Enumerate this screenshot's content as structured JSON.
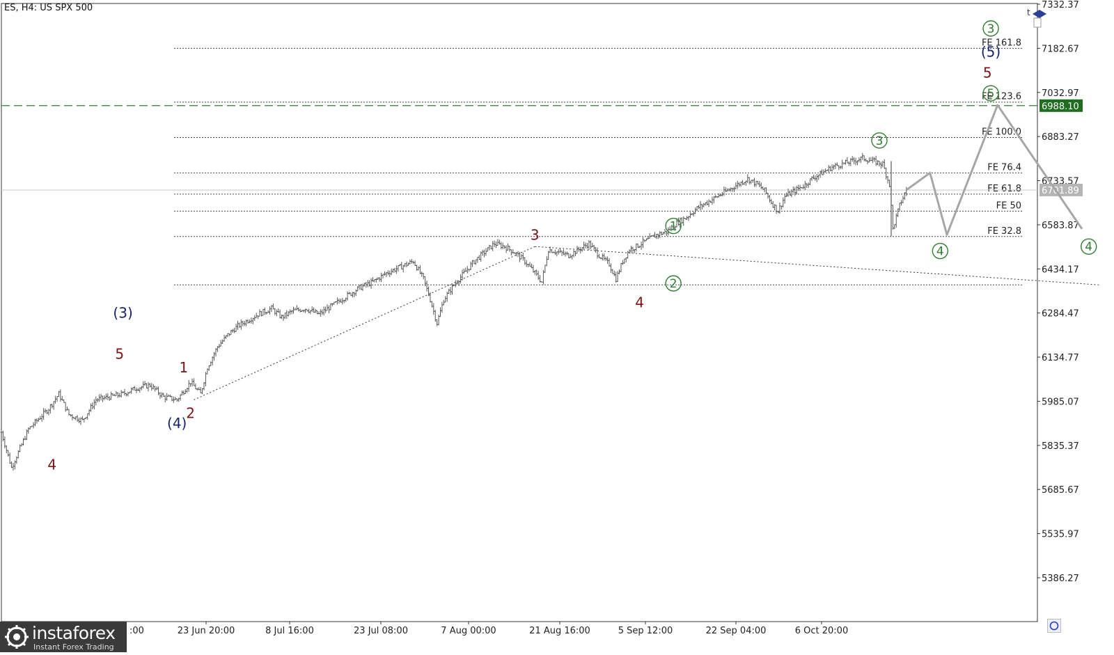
{
  "title": "ES, H4:  US SPX 500",
  "colors": {
    "background": "#ffffff",
    "candles": "#555555",
    "fib_lines": "#444444",
    "projection": "#a6a6a6",
    "wave_red": "#7a1414",
    "wave_blue": "#17236e",
    "wave_green": "#2f7d2f",
    "target_line": "#2f7d2f",
    "target_badge": "#1f6e1f",
    "current_badge": "#b5b5b5"
  },
  "watermark": {
    "brand": "instaforex",
    "tagline": "Instant Forex Trading"
  },
  "chart_data": {
    "type": "candlestick",
    "y_ticks": [
      7332.37,
      7182.67,
      7032.97,
      6883.27,
      6733.57,
      6583.87,
      6434.17,
      6284.47,
      6134.77,
      5985.07,
      5835.37,
      5685.67,
      5535.97,
      5386.27
    ],
    "x_ticks": [
      "23 Jun 20:00",
      "8 Jul 16:00",
      "23 Jul 08:00",
      "7 Aug 00:00",
      "21 Aug 16:00",
      "5 Sep 12:00",
      "22 Sep 04:00",
      "6 Oct 20:00"
    ],
    "x_ticks_partial_left": ":00",
    "ylim": [
      5250,
      7340
    ],
    "price_path": [
      [
        0,
        5880
      ],
      [
        3,
        5760
      ],
      [
        8,
        5890
      ],
      [
        14,
        5960
      ],
      [
        17,
        6010
      ],
      [
        20,
        5940
      ],
      [
        24,
        5920
      ],
      [
        28,
        5990
      ],
      [
        32,
        6000
      ],
      [
        36,
        6010
      ],
      [
        40,
        6030
      ],
      [
        44,
        6040
      ],
      [
        48,
        6000
      ],
      [
        52,
        5990
      ],
      [
        56,
        6050
      ],
      [
        59,
        6010
      ],
      [
        61,
        6100
      ],
      [
        64,
        6170
      ],
      [
        67,
        6210
      ],
      [
        70,
        6240
      ],
      [
        73,
        6260
      ],
      [
        76,
        6280
      ],
      [
        80,
        6300
      ],
      [
        83,
        6270
      ],
      [
        86,
        6290
      ],
      [
        90,
        6300
      ],
      [
        94,
        6280
      ],
      [
        98,
        6310
      ],
      [
        102,
        6340
      ],
      [
        106,
        6370
      ],
      [
        110,
        6390
      ],
      [
        114,
        6420
      ],
      [
        118,
        6440
      ],
      [
        122,
        6460
      ],
      [
        125,
        6400
      ],
      [
        127,
        6330
      ],
      [
        129,
        6250
      ],
      [
        131,
        6330
      ],
      [
        134,
        6380
      ],
      [
        137,
        6420
      ],
      [
        140,
        6460
      ],
      [
        143,
        6490
      ],
      [
        146,
        6520
      ],
      [
        149,
        6510
      ],
      [
        152,
        6490
      ],
      [
        155,
        6460
      ],
      [
        158,
        6420
      ],
      [
        160,
        6390
      ],
      [
        162,
        6500
      ],
      [
        165,
        6490
      ],
      [
        168,
        6480
      ],
      [
        171,
        6500
      ],
      [
        174,
        6520
      ],
      [
        177,
        6480
      ],
      [
        180,
        6450
      ],
      [
        182,
        6400
      ],
      [
        184,
        6460
      ],
      [
        186,
        6500
      ],
      [
        188,
        6510
      ],
      [
        191,
        6530
      ],
      [
        194,
        6550
      ],
      [
        197,
        6560
      ],
      [
        200,
        6590
      ],
      [
        203,
        6610
      ],
      [
        206,
        6640
      ],
      [
        209,
        6660
      ],
      [
        212,
        6680
      ],
      [
        215,
        6700
      ],
      [
        218,
        6720
      ],
      [
        221,
        6740
      ],
      [
        224,
        6720
      ],
      [
        226,
        6700
      ],
      [
        228,
        6660
      ],
      [
        230,
        6630
      ],
      [
        232,
        6680
      ],
      [
        235,
        6700
      ],
      [
        238,
        6720
      ],
      [
        240,
        6740
      ],
      [
        243,
        6760
      ],
      [
        246,
        6780
      ],
      [
        249,
        6790
      ],
      [
        252,
        6800
      ],
      [
        255,
        6810
      ],
      [
        258,
        6800
      ],
      [
        261,
        6790
      ],
      [
        263,
        6720
      ],
      [
        264,
        6570
      ],
      [
        266,
        6650
      ],
      [
        268,
        6701.89
      ]
    ],
    "fib_levels": [
      {
        "label": "FE 161.8",
        "value": 7182.67
      },
      {
        "label": "FE 123.6",
        "value": 7000
      },
      {
        "label": "FE 100.0",
        "value": 6880
      },
      {
        "label": "FE 76.4",
        "value": 6760
      },
      {
        "label": "FE 61.8",
        "value": 6688
      },
      {
        "label": "FE 50",
        "value": 6630
      },
      {
        "label": "FE 32.8",
        "value": 6544
      }
    ],
    "support_level": 6380,
    "target_level": 6988.1,
    "target_badge": "6988.10",
    "current_price": 6701.89,
    "current_badge": "6701.89",
    "trendlines": [
      {
        "from": [
          57,
          5990
        ],
        "to": [
          158,
          6510
        ]
      },
      {
        "from": [
          158,
          6510
        ],
        "to": [
          325,
          6380
        ]
      }
    ],
    "projection_path": [
      [
        268,
        6701.89
      ],
      [
        275,
        6760
      ],
      [
        280,
        6550
      ],
      [
        295,
        6990
      ],
      [
        320,
        6570
      ]
    ],
    "wave_labels": [
      {
        "text": "4",
        "color": "red",
        "circled": false,
        "bar": 15,
        "price": 5770
      },
      {
        "text": "(3)",
        "color": "blue",
        "circled": false,
        "bar": 36,
        "price": 6285
      },
      {
        "text": "5",
        "color": "red",
        "circled": false,
        "bar": 35,
        "price": 6145
      },
      {
        "text": "(4)",
        "color": "blue",
        "circled": false,
        "bar": 52,
        "price": 5910
      },
      {
        "text": "2",
        "color": "red",
        "circled": false,
        "bar": 56,
        "price": 5945
      },
      {
        "text": "1",
        "color": "red",
        "circled": false,
        "bar": 54,
        "price": 6100
      },
      {
        "text": "3",
        "color": "red",
        "circled": false,
        "bar": 158,
        "price": 6550
      },
      {
        "text": "4",
        "color": "red",
        "circled": false,
        "bar": 189,
        "price": 6320
      },
      {
        "text": "1",
        "color": "green",
        "circled": true,
        "bar": 199,
        "price": 6580
      },
      {
        "text": "2",
        "color": "green",
        "circled": true,
        "bar": 199,
        "price": 6385
      },
      {
        "text": "3",
        "color": "green",
        "circled": true,
        "bar": 260,
        "price": 6870
      },
      {
        "text": "4",
        "color": "green",
        "circled": true,
        "bar": 278,
        "price": 6495
      },
      {
        "text": "3",
        "color": "green",
        "circled": true,
        "bar": 293,
        "price": 7250
      },
      {
        "text": "(5)",
        "color": "blue",
        "circled": false,
        "bar": 293,
        "price": 7170
      },
      {
        "text": "5",
        "color": "red",
        "circled": false,
        "bar": 292,
        "price": 7100
      },
      {
        "text": "5",
        "color": "green",
        "circled": true,
        "bar": 293,
        "price": 7030
      },
      {
        "text": "4",
        "color": "green",
        "circled": true,
        "bar": 322,
        "price": 6510
      }
    ]
  }
}
